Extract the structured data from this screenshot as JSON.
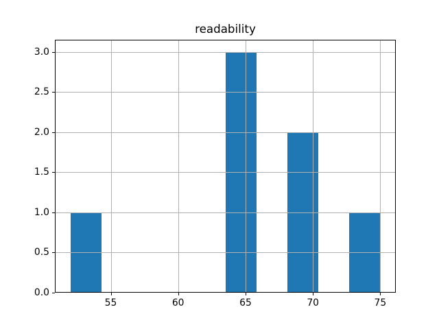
{
  "figure": {
    "background": "#ffffff"
  },
  "chart_data": {
    "type": "histogram",
    "title": "readability",
    "xlabel": "",
    "ylabel": "",
    "bin_edges": [
      52.0,
      54.3,
      56.6,
      58.9,
      61.2,
      63.5,
      65.8,
      68.1,
      70.4,
      72.7,
      75.0
    ],
    "counts": [
      1,
      0,
      0,
      0,
      0,
      3,
      0,
      2,
      0,
      1
    ],
    "xticks": {
      "values": [
        55,
        60,
        65,
        70,
        75
      ],
      "labels": [
        "55",
        "60",
        "65",
        "70",
        "75"
      ]
    },
    "yticks": {
      "values": [
        0.0,
        0.5,
        1.0,
        1.5,
        2.0,
        2.5,
        3.0
      ],
      "labels": [
        "0.0",
        "0.5",
        "1.0",
        "1.5",
        "2.0",
        "2.5",
        "3.0"
      ]
    },
    "xlim": [
      50.85,
      76.15
    ],
    "ylim": [
      0,
      3.15
    ],
    "grid": true,
    "grid_above_bars": true,
    "legend": "none",
    "colors": {
      "bar": "#1f77b4",
      "grid": "#b0b0b0",
      "axis": "#000000",
      "text": "#000000",
      "background": "#ffffff"
    }
  }
}
